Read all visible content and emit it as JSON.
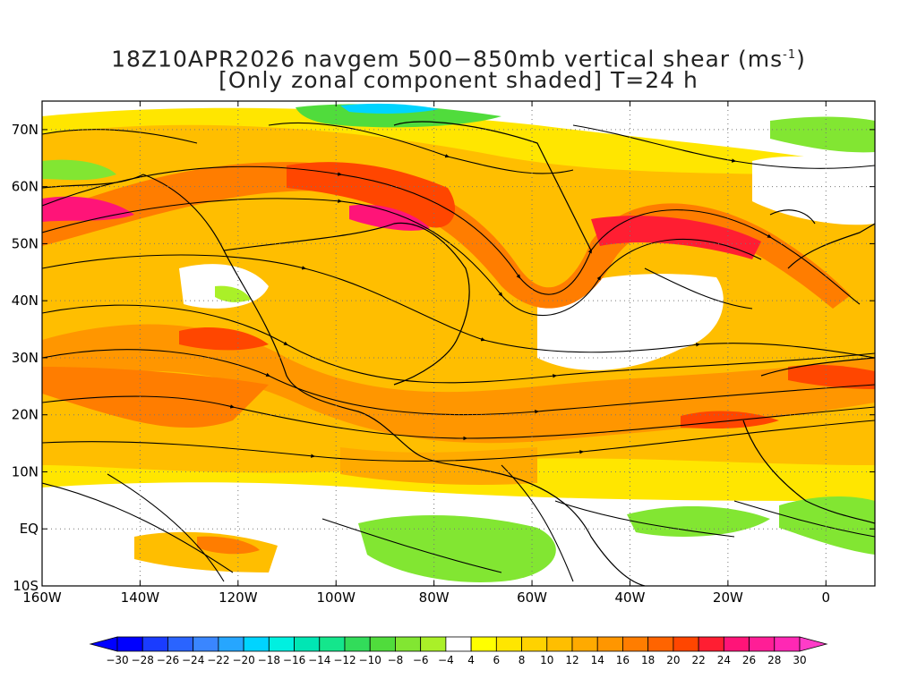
{
  "title": {
    "line1_prefix": "18Z10APR2026 navgem 500−850mb vertical shear (ms",
    "line1_sup": "-1",
    "line1_suffix": ")",
    "line2": "[Only zonal component shaded] T=24 h"
  },
  "axes": {
    "lat_labels": [
      "70N",
      "60N",
      "50N",
      "40N",
      "30N",
      "20N",
      "10N",
      "EQ",
      "10S"
    ],
    "lat_values": [
      70,
      60,
      50,
      40,
      30,
      20,
      10,
      0,
      -10
    ],
    "lon_labels": [
      "160W",
      "140W",
      "120W",
      "100W",
      "80W",
      "60W",
      "40W",
      "20W",
      "0"
    ],
    "lon_values": [
      -160,
      -140,
      -120,
      -100,
      -80,
      -60,
      -40,
      -20,
      0
    ],
    "lon_range": [
      -160,
      10
    ],
    "lat_range": [
      -10,
      75
    ]
  },
  "colorbar": {
    "labels": [
      "-30",
      "-28",
      "-26",
      "-24",
      "-22",
      "-20",
      "-18",
      "-16",
      "-14",
      "-12",
      "-10",
      "-8",
      "-6",
      "-4",
      "4",
      "6",
      "8",
      "10",
      "12",
      "14",
      "16",
      "18",
      "20",
      "22",
      "24",
      "26",
      "28",
      "30"
    ],
    "colors": [
      "#0000ff",
      "#1a3cff",
      "#2a64ff",
      "#3a86ff",
      "#26a6ff",
      "#00d4ff",
      "#00f0e0",
      "#00e6b4",
      "#14e68c",
      "#32dc5a",
      "#50dc3c",
      "#82e632",
      "#aaf028",
      "#ffffff",
      "#ffff00",
      "#ffe600",
      "#ffd200",
      "#ffbe00",
      "#ffaa00",
      "#ff9600",
      "#ff7d00",
      "#ff6400",
      "#ff4600",
      "#ff1e32",
      "#ff1478",
      "#ff1e96",
      "#ff28b4"
    ],
    "left_arrow_color": "#0000ff",
    "right_arrow_color": "#ff3cc8"
  }
}
